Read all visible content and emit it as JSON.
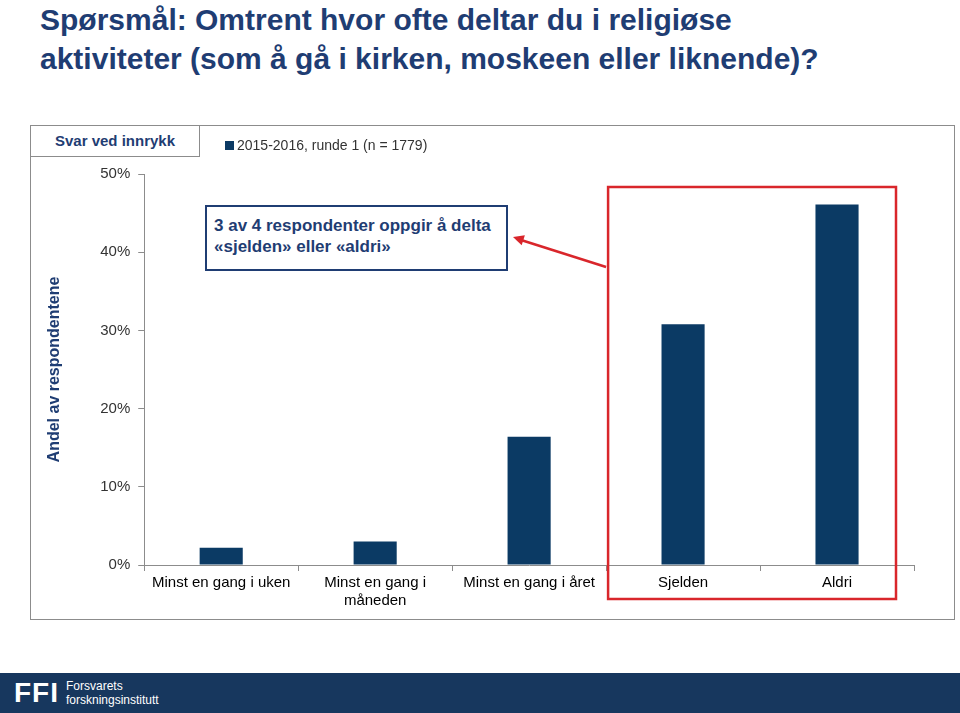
{
  "chart_data": {
    "type": "bar",
    "title": "Spørsmål: Omtrent hvor ofte deltar du i religiøse aktiviteter (som å gå i kirken, moskeen eller liknende)?",
    "note": "Svar ved innrykk",
    "y_label": "Andel av respondentene",
    "categories": [
      "Minst en gang i uken",
      "Minst en gang i måneden",
      "Minst en gang i året",
      "Sjelden",
      "Aldri"
    ],
    "series": [
      {
        "name": "2015-2016, runde 1 (n = 1779)",
        "color": "#0b3a64",
        "values": [
          2.2,
          3.0,
          16.4,
          30.8,
          46.1
        ]
      }
    ],
    "ylim": [
      0,
      50
    ],
    "yticks": [
      {
        "value": 0,
        "label": "0%"
      },
      {
        "value": 10,
        "label": "10%"
      },
      {
        "value": 20,
        "label": "20%"
      },
      {
        "value": 30,
        "label": "30%"
      },
      {
        "value": 40,
        "label": "40%"
      },
      {
        "value": 50,
        "label": "50%"
      }
    ],
    "grid": false,
    "annotation": "3 av 4 respondenter oppgir å delta «sjelden» eller «aldri»"
  },
  "footer": {
    "logo": "FFI",
    "lines": [
      "Forsvarets",
      "forskningsinstitutt"
    ]
  }
}
